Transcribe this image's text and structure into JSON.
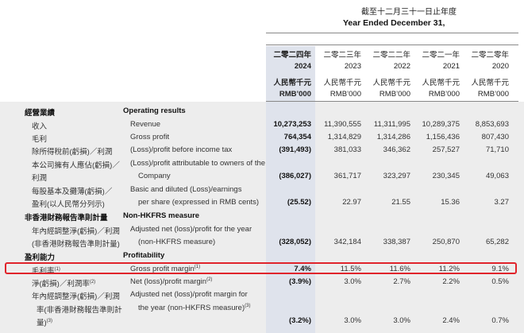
{
  "header": {
    "period_zh": "截至十二月三十一日止年度",
    "period_en": "Year Ended December 31,"
  },
  "columns": [
    {
      "zh": "二零二四年",
      "year": "2024",
      "unit_zh": "人民幣千元",
      "unit_en": "RMB’000"
    },
    {
      "zh": "二零二三年",
      "year": "2023",
      "unit_zh": "人民幣千元",
      "unit_en": "RMB’000"
    },
    {
      "zh": "二零二二年",
      "year": "2022",
      "unit_zh": "人民幣千元",
      "unit_en": "RMB’000"
    },
    {
      "zh": "二零二一年",
      "year": "2021",
      "unit_zh": "人民幣千元",
      "unit_en": "RMB’000"
    },
    {
      "zh": "二零二零年",
      "year": "2020",
      "unit_zh": "人民幣千元",
      "unit_en": "RMB’000"
    }
  ],
  "sections": {
    "operating": {
      "zh": "經營業績",
      "en": "Operating results"
    },
    "non_hkfrs": {
      "zh": "非香港財務報告準則計量",
      "en": "Non-HKFRS measure"
    },
    "profitability": {
      "zh": "盈利能力",
      "en": "Profitability"
    }
  },
  "rows": {
    "revenue": {
      "zh": "收入",
      "en": "Revenue",
      "values": [
        "10,273,253",
        "11,390,555",
        "11,311,995",
        "10,289,375",
        "8,853,693"
      ]
    },
    "gross_profit": {
      "zh": "毛利",
      "en": "Gross profit",
      "values": [
        "764,354",
        "1,314,829",
        "1,314,286",
        "1,156,436",
        "807,430"
      ]
    },
    "pbt": {
      "zh": "除所得稅前(虧損)／利潤",
      "en": "(Loss)/profit before income tax",
      "values": [
        "(391,493)",
        "381,033",
        "346,362",
        "257,527",
        "71,710"
      ]
    },
    "attrib": {
      "zh1": "本公司擁有人應佔(虧損)／",
      "zh2": "利潤",
      "en1": "(Loss)/profit attributable to owners of the",
      "en2": "Company",
      "values": [
        "(386,027)",
        "361,717",
        "323,297",
        "230,345",
        "49,063"
      ]
    },
    "eps": {
      "zh1": "每股基本及攤薄(虧損)／",
      "zh2": "盈利(以人民幣分列示)",
      "en1": "Basic and diluted (Loss)/earnings",
      "en2": "per share (expressed in RMB cents)",
      "values": [
        "(25.52)",
        "22.97",
        "21.55",
        "15.36",
        "3.27"
      ]
    },
    "adj_net": {
      "zh1": "年內經調整淨(虧損)／利潤",
      "zh2": "(非香港財務報告準則計量)",
      "en1": "Adjusted net (loss)/profit for the year",
      "en2": "(non-HKFRS measure)",
      "values": [
        "(328,052)",
        "342,184",
        "338,387",
        "250,870",
        "65,282"
      ]
    },
    "gpm": {
      "zh": "毛利率",
      "en": "Gross profit margin",
      "sup": "(1)",
      "values": [
        "7.4%",
        "11.5%",
        "11.6%",
        "11.2%",
        "9.1%"
      ]
    },
    "npm": {
      "zh": "淨(虧損)／利潤率",
      "en": "Net (loss)/profit margin",
      "sup": "(2)",
      "values": [
        "(3.9%)",
        "3.0%",
        "2.7%",
        "2.2%",
        "0.5%"
      ]
    },
    "adj_npm": {
      "zh1": "年內經調整淨(虧損)／利潤",
      "zh2": "率(非香港財務報告準則計",
      "zh3": "量)",
      "en1": "Adjusted net (loss)/profit margin for",
      "en2": "the year (non-HKFRS measure)",
      "sup": "(3)",
      "values": [
        "(3.2%)",
        "3.0%",
        "3.0%",
        "2.4%",
        "0.7%"
      ]
    }
  }
}
